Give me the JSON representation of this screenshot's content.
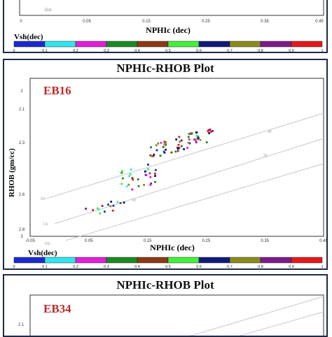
{
  "panels": {
    "top": {
      "xlabel": "NPHIc (dec)",
      "x_ticks": [
        "0",
        "0.05",
        "0.15",
        "0.25",
        "0.35",
        "0.45"
      ],
      "colorbar_label": "Vsh(dec)",
      "colorbar_ticks": [
        "0",
        "0.1",
        "0.2",
        "0.3",
        "0.4",
        "0.5",
        "0.6",
        "0.7",
        "0.8",
        "0.9",
        "1"
      ],
      "line_label": "Dol."
    },
    "middle": {
      "title": "NPHIc-RHOB Plot",
      "well": "EB16",
      "xlabel": "NPHIc (dec)",
      "ylabel": "RHOB (gm/cc)",
      "colorbar_label": "Vsh(dec)",
      "colorbar_ticks": [
        "0",
        "0.1",
        "0.2",
        "0.3",
        "0.4",
        "0.5",
        "0.6",
        "0.7",
        "0.8",
        "0.9",
        "1"
      ],
      "line_labels": [
        "SS",
        "LS",
        "Dol."
      ],
      "porosity_labels": [
        "30",
        "20",
        "10"
      ]
    },
    "bottom": {
      "title": "NPHIc-RHOB Plot",
      "well": "EB34",
      "y_tick_label": "2.1"
    }
  },
  "colorbar_colors": [
    "#1a2ad0",
    "#2ee6ee",
    "#e21fd9",
    "#1b8a22",
    "#8b3a16",
    "#42f03a",
    "#0f1a7a",
    "#8a8a1c",
    "#7d1a8a",
    "#e31b1b"
  ],
  "chart_data": {
    "type": "scatter",
    "title": "NPHIc-RHOB Plot",
    "subtitle": "EB16",
    "xlabel": "NPHIc (dec)",
    "ylabel": "RHOB (gm/cc)",
    "xlim": [
      -0.05,
      0.45
    ],
    "ylim": [
      3,
      2
    ],
    "x_ticks": [
      "-0.05",
      "0.05",
      "0.15",
      "0.25",
      "0.35",
      "0.45"
    ],
    "y_ticks": [
      "2",
      "2.1",
      "2.3",
      "2.6",
      "2.8",
      "3"
    ],
    "color_scale": {
      "label": "Vsh(dec)",
      "min": 0,
      "max": 1
    },
    "points": []
  }
}
